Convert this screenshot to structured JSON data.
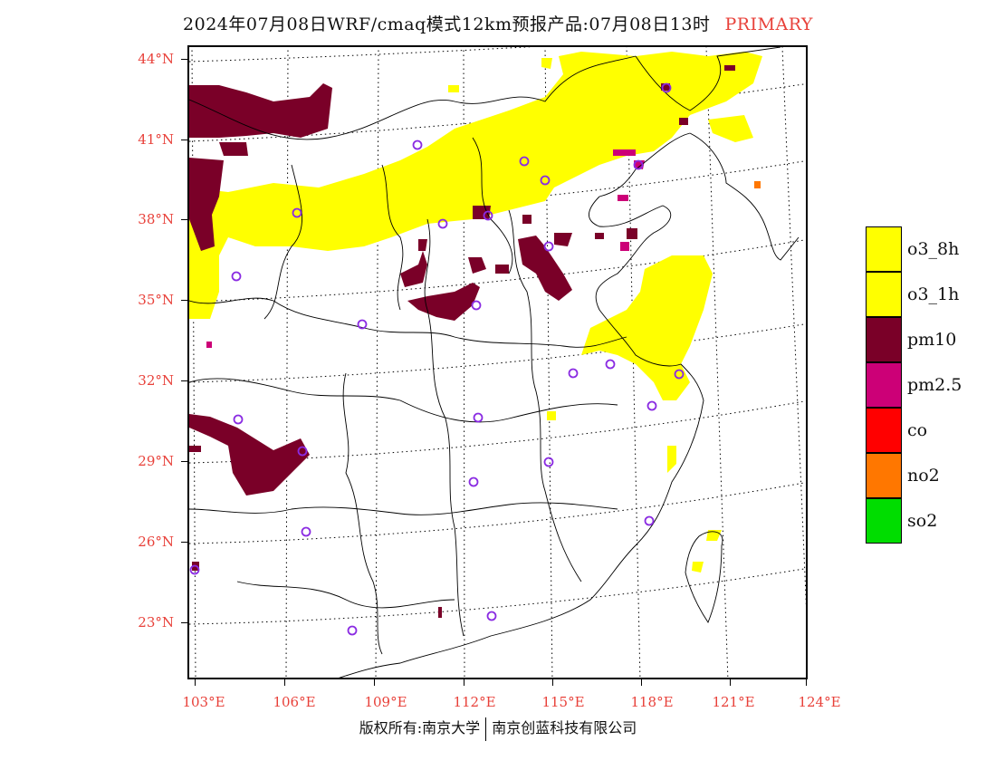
{
  "title": {
    "main": "2024年07月08日WRF/cmaq模式12km预报产品:07月08日13时",
    "tag": "PRIMARY"
  },
  "axes": {
    "lat_labels": [
      "44°N",
      "41°N",
      "38°N",
      "35°N",
      "32°N",
      "29°N",
      "26°N",
      "23°N"
    ],
    "lon_labels": [
      "103°E",
      "106°E",
      "109°E",
      "112°E",
      "115°E",
      "118°E",
      "121°E",
      "124°E"
    ]
  },
  "legend": {
    "items": [
      {
        "label": "o3_8h",
        "color": "#ffff00"
      },
      {
        "label": "o3_1h",
        "color": "#ffff00"
      },
      {
        "label": "pm10",
        "color": "#7a0028"
      },
      {
        "label": "pm2.5",
        "color": "#cc0077"
      },
      {
        "label": "co",
        "color": "#ff0000"
      },
      {
        "label": "no2",
        "color": "#ff7700"
      },
      {
        "label": "so2",
        "color": "#00dd00"
      }
    ]
  },
  "footer": {
    "left": "版权所有:南京大学",
    "right": "南京创蓝科技有限公司"
  },
  "colors": {
    "label_red": "#e8413a",
    "o3": "#ffff00",
    "pm10": "#7a0028",
    "pm25": "#cc0077",
    "no2": "#ff7700",
    "station_ring": "#8a2be2"
  }
}
